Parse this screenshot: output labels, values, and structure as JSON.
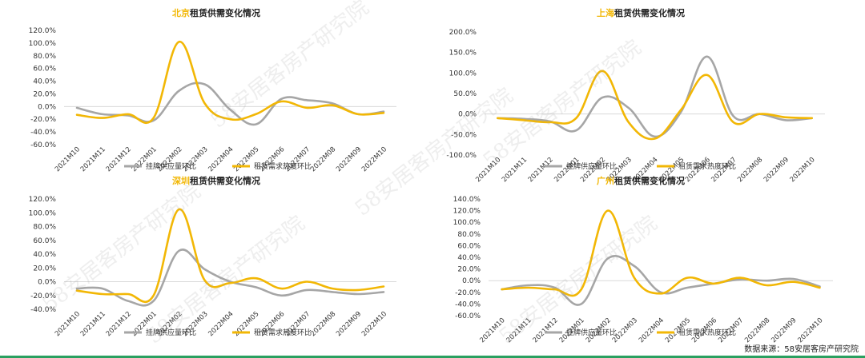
{
  "watermark": "58安居客房产研究院",
  "source": "数据来源：58安居客房产研究院",
  "colors": {
    "supply": "#a6a6a6",
    "demand": "#f2b705",
    "city": "#f2b705"
  },
  "chart_data": [
    {
      "type": "line",
      "title_city": "北京",
      "title_rest": "租赁供需变化情况",
      "categories": [
        "2021M10",
        "2021M11",
        "2021M12",
        "2022M01",
        "2022M02",
        "2022M03",
        "2022M04",
        "2022M05",
        "2022M06",
        "2022M07",
        "2022M08",
        "2022M09",
        "2022M10"
      ],
      "yticks": [
        "120.0%",
        "100.0%",
        "80.0%",
        "60.0%",
        "40.0%",
        "20.0%",
        "0.0%",
        "-20.0%",
        "-40.0%",
        "-60.0%"
      ],
      "ylim": [
        -60,
        120
      ],
      "series": [
        {
          "name": "挂牌供应量环比",
          "values": [
            -2,
            -12,
            -14,
            -22,
            25,
            35,
            -5,
            -28,
            12,
            10,
            5,
            -12,
            -8
          ]
        },
        {
          "name": "租赁需求热度环比",
          "values": [
            -13,
            -18,
            -12,
            -18,
            102,
            5,
            -20,
            -12,
            8,
            -2,
            2,
            -12,
            -10
          ]
        }
      ]
    },
    {
      "type": "line",
      "title_city": "上海",
      "title_rest": "租赁供需变化情况",
      "categories": [
        "2021M10",
        "2021M11",
        "2021M12",
        "2022M01",
        "2022M02",
        "2022M03",
        "2022M04",
        "2022M05",
        "2022M06",
        "2022M07",
        "2022M08",
        "2022M09",
        "2022M10"
      ],
      "yticks": [
        "200.0%",
        "150.0%",
        "100.0%",
        "50.0%",
        "0.0%",
        "-50.0%",
        "-100.0%"
      ],
      "ylim": [
        -100,
        200
      ],
      "series": [
        {
          "name": "挂牌供应量环比",
          "values": [
            -10,
            -12,
            -18,
            -40,
            40,
            15,
            -55,
            5,
            140,
            -5,
            0,
            -15,
            -10
          ]
        },
        {
          "name": "租赁需求热度环比",
          "values": [
            -10,
            -15,
            -20,
            -10,
            105,
            -20,
            -60,
            10,
            95,
            -20,
            0,
            -8,
            -10
          ]
        }
      ]
    },
    {
      "type": "line",
      "title_city": "深圳",
      "title_rest": "租赁供需变化情况",
      "categories": [
        "2021M10",
        "2021M11",
        "2021M12",
        "2022M01",
        "2022M02",
        "2022M03",
        "2022M04",
        "2022M05",
        "2022M06",
        "2022M07",
        "2022M08",
        "2022M09",
        "2022M10"
      ],
      "yticks": [
        "120.0%",
        "100.0%",
        "80.0%",
        "60.0%",
        "40.0%",
        "20.0%",
        "0.0%",
        "-20.0%",
        "-40.0%"
      ],
      "ylim": [
        -40,
        120
      ],
      "series": [
        {
          "name": "挂牌供应量环比",
          "values": [
            -10,
            -10,
            -28,
            -28,
            45,
            18,
            0,
            -8,
            -20,
            -12,
            -15,
            -18,
            -15
          ]
        },
        {
          "name": "租赁需求热度环比",
          "values": [
            -13,
            -18,
            -18,
            -20,
            105,
            2,
            -2,
            5,
            -10,
            0,
            -10,
            -12,
            -7
          ]
        }
      ]
    },
    {
      "type": "line",
      "title_city": "广州",
      "title_rest": "租赁供需变化情况",
      "categories": [
        "2021M10",
        "2021M11",
        "2021M12",
        "2022M01",
        "2022M02",
        "2022M03",
        "2022M04",
        "2022M05",
        "2022M06",
        "2022M07",
        "2022M08",
        "2022M09",
        "2022M10"
      ],
      "yticks": [
        "140.0%",
        "120.0%",
        "100.0%",
        "80.0%",
        "60.0%",
        "40.0%",
        "20.0%",
        "0.0%",
        "-20.0%",
        "-40.0%",
        "-60.0%"
      ],
      "ylim": [
        -60,
        140
      ],
      "series": [
        {
          "name": "挂牌供应量环比",
          "values": [
            -15,
            -8,
            -12,
            -40,
            38,
            25,
            -20,
            -12,
            -5,
            2,
            0,
            3,
            -10
          ]
        },
        {
          "name": "租赁需求热度环比",
          "values": [
            -15,
            -12,
            -15,
            -15,
            120,
            5,
            -22,
            5,
            -5,
            5,
            -8,
            -2,
            -12
          ]
        }
      ]
    }
  ]
}
